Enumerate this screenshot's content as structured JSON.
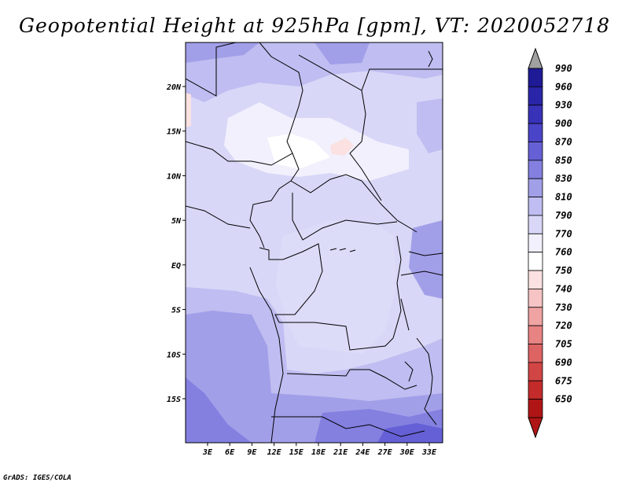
{
  "title": "Geopotential Height at 925hPa [gpm], VT: 2020052718",
  "credit": "GrADS: IGES/COLA",
  "lat_ticks": [
    {
      "label": "20N",
      "value": 20
    },
    {
      "label": "15N",
      "value": 15
    },
    {
      "label": "10N",
      "value": 10
    },
    {
      "label": "5N",
      "value": 5
    },
    {
      "label": "EQ",
      "value": 0
    },
    {
      "label": "5S",
      "value": -5
    },
    {
      "label": "10S",
      "value": -10
    },
    {
      "label": "15S",
      "value": -15
    }
  ],
  "lon_ticks": [
    {
      "label": "3E",
      "value": 3
    },
    {
      "label": "6E",
      "value": 6
    },
    {
      "label": "9E",
      "value": 9
    },
    {
      "label": "12E",
      "value": 12
    },
    {
      "label": "15E",
      "value": 15
    },
    {
      "label": "18E",
      "value": 18
    },
    {
      "label": "21E",
      "value": 21
    },
    {
      "label": "24E",
      "value": 24
    },
    {
      "label": "27E",
      "value": 27
    },
    {
      "label": "30E",
      "value": 30
    },
    {
      "label": "33E",
      "value": 33
    }
  ],
  "colorbar": [
    {
      "label": "990",
      "color": "#1f1a96"
    },
    {
      "label": "960",
      "color": "#2a25a8"
    },
    {
      "label": "930",
      "color": "#3832b8"
    },
    {
      "label": "900",
      "color": "#4a44c8"
    },
    {
      "label": "870",
      "color": "#6660d6"
    },
    {
      "label": "850",
      "color": "#8380e0"
    },
    {
      "label": "830",
      "color": "#a29fe9"
    },
    {
      "label": "810",
      "color": "#bfbdf1"
    },
    {
      "label": "790",
      "color": "#d8d7f7"
    },
    {
      "label": "770",
      "color": "#f1f0fc"
    },
    {
      "label": "760",
      "color": "#ffffff"
    },
    {
      "label": "750",
      "color": "#fbe1e1"
    },
    {
      "label": "740",
      "color": "#f6c4c4"
    },
    {
      "label": "730",
      "color": "#f0a3a3"
    },
    {
      "label": "720",
      "color": "#e88383"
    },
    {
      "label": "705",
      "color": "#de6363"
    },
    {
      "label": "690",
      "color": "#d24545"
    },
    {
      "label": "675",
      "color": "#c42b2b"
    },
    {
      "label": "650",
      "color": "#b01515"
    }
  ],
  "colorbar_top_arrow_color": "#a0a0a0",
  "colorbar_bottom_arrow_color": "#b01515"
}
